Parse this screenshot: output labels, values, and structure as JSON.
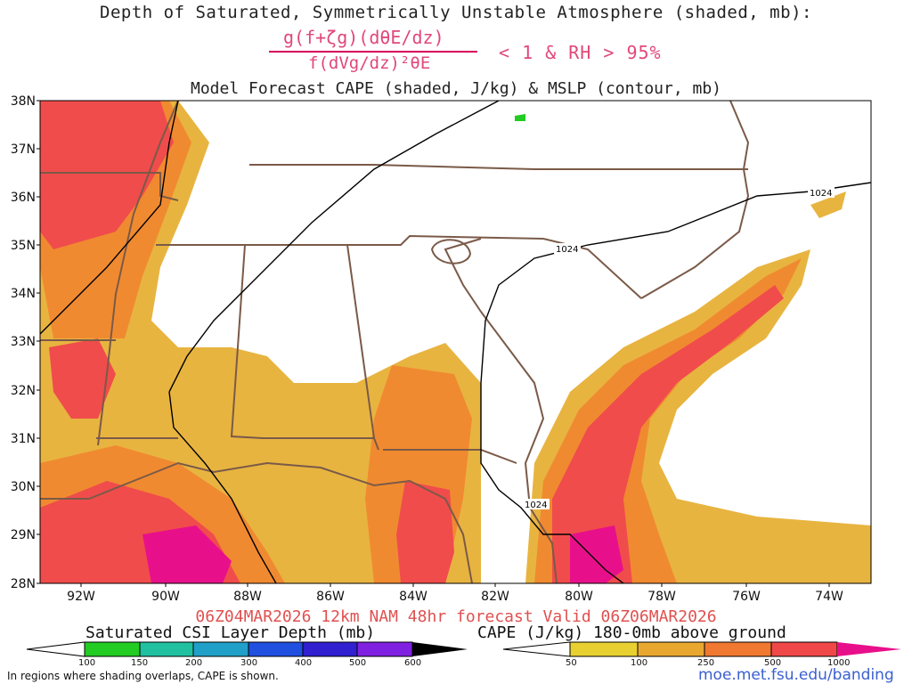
{
  "header": {
    "title_line1": "Depth of Saturated, Symmetrically Unstable Atmosphere (shaded, mb):",
    "fraction_numerator": "g(f+ζg)(dθE/dz)",
    "fraction_denominator": "f(dVg/dz)²θE",
    "condition": "< 1 & RH > 95%",
    "title_line2": "Model Forecast CAPE (shaded, J/kg) & MSLP (contour, mb)"
  },
  "axes": {
    "lat_labels": [
      "38N",
      "37N",
      "36N",
      "35N",
      "34N",
      "33N",
      "32N",
      "31N",
      "30N",
      "29N",
      "28N"
    ],
    "lon_labels": [
      "92W",
      "90W",
      "88W",
      "86W",
      "84W",
      "82W",
      "80W",
      "78W",
      "76W",
      "74W"
    ]
  },
  "contours": {
    "isobar_label_a": "1024",
    "isobar_label_b": "1024",
    "isobar_label_c": "1024"
  },
  "footer": {
    "valid_line": "06Z04MAR2026 12km NAM 48hr forecast Valid 06Z06MAR2026",
    "csi_colorbar_label": "Saturated CSI Layer Depth (mb)",
    "cape_colorbar_label": "CAPE (J/kg) 180-0mb above ground",
    "note": "In regions where shading overlaps, CAPE is shown.",
    "url": "moe.met.fsu.edu/banding"
  },
  "csi_colorbar": {
    "ticks": [
      "100",
      "150",
      "200",
      "300",
      "400",
      "500",
      "600"
    ],
    "colors": [
      "#ffffff",
      "#22cc22",
      "#20c0a0",
      "#20a0c8",
      "#2050e0",
      "#3020d0",
      "#8020e0",
      "#000000"
    ]
  },
  "cape_colorbar": {
    "ticks": [
      "50",
      "100",
      "250",
      "500",
      "1000"
    ],
    "colors": [
      "#ffffff",
      "#e8d030",
      "#e8a830",
      "#f07830",
      "#f04848",
      "#e8108a"
    ]
  },
  "legend_colors": {
    "cape_low": "#e8b440",
    "cape_mid": "#f08a30",
    "cape_high": "#f04c4c",
    "cape_max": "#e8108a",
    "borders": "#7a5a48",
    "isobar": "#000000"
  }
}
